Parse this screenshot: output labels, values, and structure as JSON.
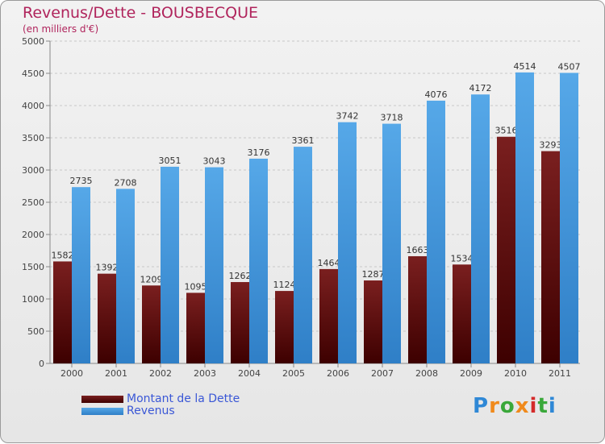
{
  "title": "Revenus/Dette - BOUSBECQUE",
  "subtitle": "(en milliers d'€)",
  "logo": "Proxiti",
  "colors": {
    "title": "#b0245c",
    "legend_text": "#3a57d6",
    "dette": "#7a1f1f",
    "dette_dark": "#3d0000",
    "revenus": "#56a8e8",
    "revenus_dark": "#2f7fc7",
    "grid": "#c8c8c8"
  },
  "chart_data": {
    "type": "bar",
    "categories": [
      "2000",
      "2001",
      "2002",
      "2003",
      "2004",
      "2005",
      "2006",
      "2007",
      "2008",
      "2009",
      "2010",
      "2011"
    ],
    "series": [
      {
        "name": "Montant de la Dette",
        "values": [
          1582,
          1392,
          1209,
          1095,
          1262,
          1124,
          1464,
          1287,
          1663,
          1534,
          3516,
          3293
        ]
      },
      {
        "name": "Revenus",
        "values": [
          2735,
          2708,
          3051,
          3043,
          3176,
          3361,
          3742,
          3718,
          4076,
          4172,
          4514,
          4507
        ]
      }
    ],
    "yticks": [
      "0",
      "500",
      "1000",
      "1500",
      "2000",
      "2500",
      "3000",
      "3500",
      "4000",
      "4500",
      "5000"
    ],
    "ylim": [
      0,
      5000
    ],
    "grid": true,
    "legend_position": "bottom-left"
  }
}
